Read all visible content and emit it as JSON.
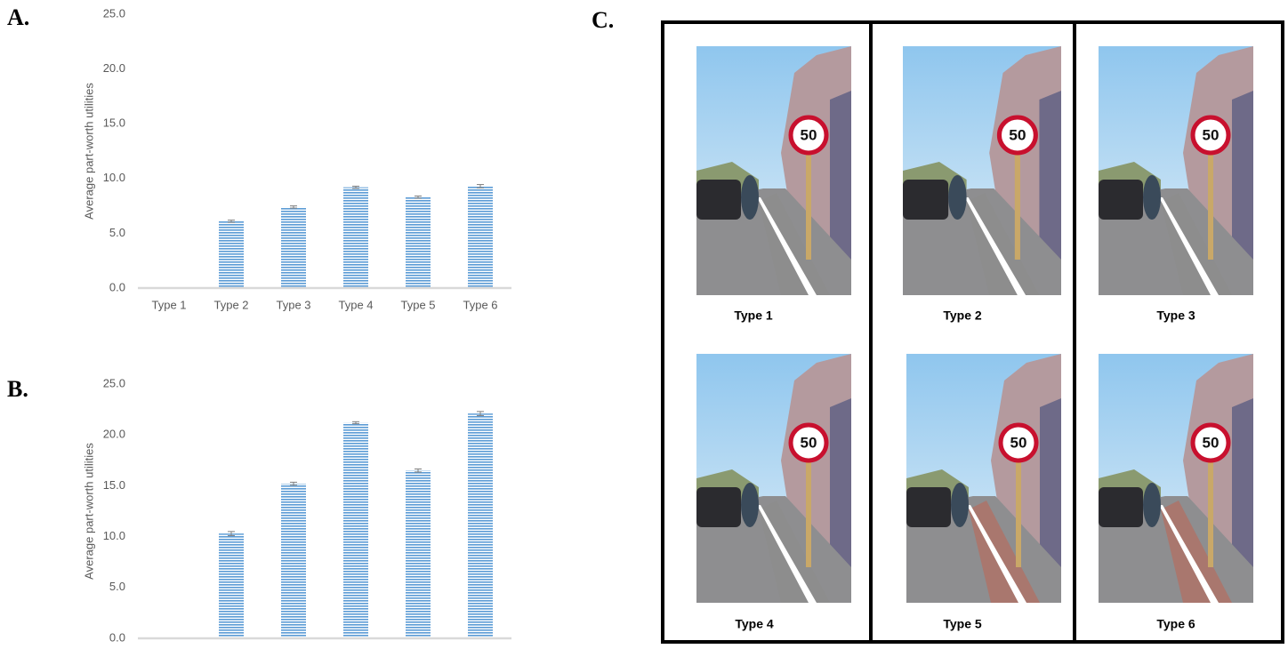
{
  "panel_labels": [
    "A.",
    "B.",
    "C."
  ],
  "chart_data": [
    {
      "type": "bar",
      "y_label": "Average part-worth utilities",
      "categories": [
        "Type 1",
        "Type 2",
        "Type 3",
        "Type 4",
        "Type 5",
        "Type 6"
      ],
      "values": [
        0,
        6.1,
        7.4,
        9.2,
        8.3,
        9.3
      ],
      "errors": [
        0,
        0.1,
        0.1,
        0.1,
        0.1,
        0.15
      ],
      "color": "#5b9bd5",
      "ylim": [
        0,
        25
      ],
      "yticks": [
        {
          "value": 0,
          "label": "0.0"
        },
        {
          "value": 5,
          "label": "5.0"
        },
        {
          "value": 10,
          "label": "10.0"
        },
        {
          "value": 15,
          "label": "15.0"
        },
        {
          "value": 20,
          "label": "20.0"
        },
        {
          "value": 25,
          "label": "25.0"
        }
      ]
    },
    {
      "type": "bar",
      "y_label": "Average part-worth utilities",
      "values": [
        0,
        10.3,
        15.2,
        21.2,
        16.5,
        22.1
      ],
      "errors": [
        0,
        0.2,
        0.15,
        0.1,
        0.15,
        0.2
      ],
      "color": "#5b9bd5",
      "ylim": [
        0,
        25
      ],
      "yticks": [
        {
          "value": 0,
          "label": "0.0"
        },
        {
          "value": 5,
          "label": "5.0"
        },
        {
          "value": 10,
          "label": "10.0"
        },
        {
          "value": 15,
          "label": "15.0"
        },
        {
          "value": 20,
          "label": "20.0"
        },
        {
          "value": 25,
          "label": "25.0"
        }
      ]
    }
  ],
  "panel_c": {
    "sign_text": "50",
    "labels": [
      "Type 1",
      "Type 2",
      "Type 3",
      "Type 4",
      "Type 5",
      "Type 6"
    ]
  }
}
